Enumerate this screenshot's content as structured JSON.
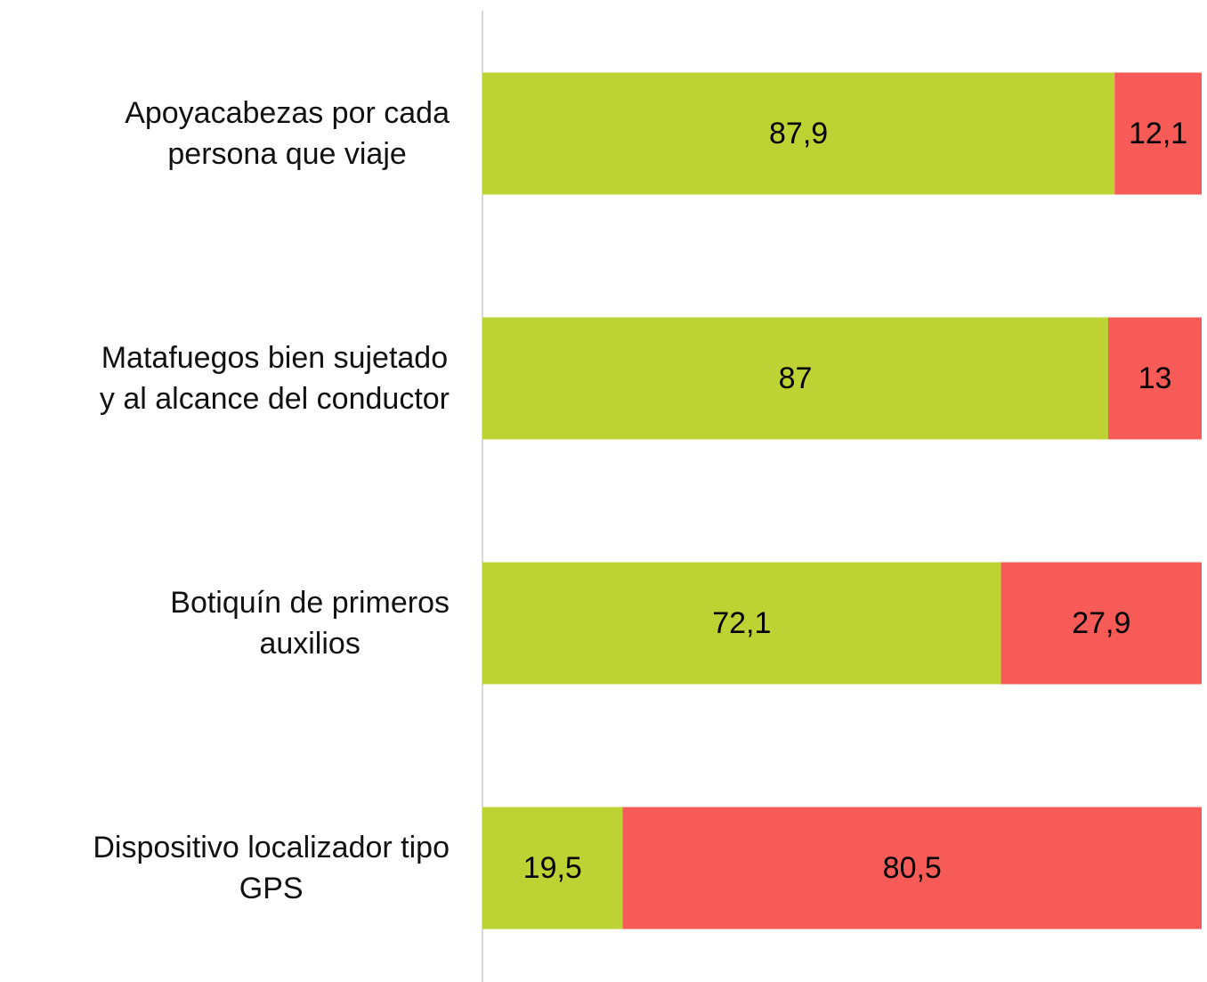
{
  "chart_data": {
    "type": "stacked-bar-horizontal",
    "categories": [
      "Apoyacabezas por cada\npersona que viaje",
      "Matafuegos bien sujetado\ny al alcance del conductor",
      "Botiquín de primeros\nauxilios",
      "Dispositivo localizador tipo\nGPS"
    ],
    "series": [
      {
        "color": "#bdd233",
        "values": [
          87.9,
          87,
          72.1,
          19.5
        ],
        "value_labels": [
          "87,9",
          "87",
          "72,1",
          "19,5"
        ]
      },
      {
        "color": "#f75b57",
        "values": [
          12.1,
          13,
          27.9,
          80.5
        ],
        "value_labels": [
          "12,1",
          "13",
          "27,9",
          "80,5"
        ]
      }
    ],
    "xlim": [
      0,
      100
    ]
  }
}
